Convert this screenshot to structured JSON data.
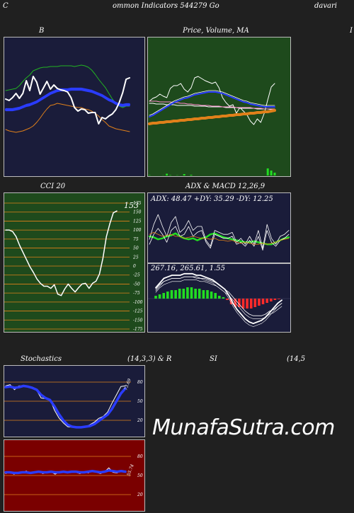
{
  "header": {
    "left": "C",
    "center": "ommon  Indicators 544279 Go",
    "right": "davari"
  },
  "brand": "MunafaSutra.com",
  "colors": {
    "page_bg": "#202020",
    "navy": "#1a1c3a",
    "green_bg": "#1e4a1c",
    "red_bg": "#7a0000",
    "white": "#ffffff",
    "blue": "#2a3cff",
    "orange": "#e0801a",
    "green_line": "#22b222",
    "bright_green": "#22dd22",
    "red": "#ff2a2a",
    "pink": "#ff88cc",
    "border": "#bbbbbb"
  },
  "chart_data": [
    {
      "type": "line",
      "title": "B",
      "series": [
        {
          "role": "upper_band",
          "color": "#22b222",
          "values": [
            128,
            127,
            126,
            125,
            121,
            115,
            110,
            106,
            100,
            98,
            96,
            95,
            95,
            94,
            94,
            94,
            93,
            93,
            93,
            93,
            94,
            93,
            92,
            93,
            95,
            99,
            105,
            112,
            118,
            124,
            132,
            140,
            146,
            150,
            152,
            150,
            150
          ]
        },
        {
          "role": "middle_band",
          "color": "#2a3cff",
          "values": [
            155,
            155,
            155,
            154,
            153,
            151,
            149,
            148,
            146,
            144,
            141,
            138,
            135,
            132,
            130,
            128,
            127,
            127,
            127,
            126,
            126,
            126,
            126,
            127,
            128,
            129,
            131,
            133,
            135,
            138,
            141,
            143,
            146,
            148,
            149,
            148,
            148
          ]
        },
        {
          "role": "lower_band",
          "color": "#e0801a",
          "values": [
            183,
            185,
            186,
            187,
            186,
            185,
            183,
            181,
            178,
            173,
            167,
            160,
            154,
            149,
            148,
            146,
            147,
            148,
            149,
            150,
            151,
            152,
            152,
            154,
            155,
            157,
            160,
            164,
            169,
            173,
            178,
            180,
            182,
            183,
            184,
            185,
            186
          ]
        },
        {
          "role": "price",
          "color": "#ffffff",
          "values": [
            140,
            142,
            138,
            132,
            139,
            132,
            114,
            128,
            108,
            116,
            133,
            124,
            115,
            126,
            120,
            125,
            127,
            128,
            130,
            138,
            152,
            157,
            154,
            155,
            160,
            159,
            159,
            175,
            166,
            168,
            164,
            161,
            155,
            145,
            131,
            112,
            110
          ]
        }
      ]
    },
    {
      "type": "line",
      "title": "Price,  Volume,  MA",
      "series": [
        {
          "role": "price",
          "color": "#ffffff",
          "values": [
            143,
            139,
            137,
            133,
            136,
            138,
            125,
            121,
            121,
            118,
            126,
            130,
            124,
            110,
            108,
            111,
            114,
            116,
            118,
            116,
            124,
            138,
            145,
            150,
            148,
            160,
            152,
            157,
            162,
            171,
            176,
            168,
            173,
            160,
            141,
            123,
            118
          ]
        },
        {
          "role": "ma_long",
          "color": "#ffffff",
          "values": [
            146,
            146,
            147,
            147,
            147,
            148,
            148,
            148,
            149,
            149,
            149,
            149,
            149,
            150,
            150,
            150,
            150,
            151,
            151,
            151,
            151,
            151,
            152,
            152,
            152,
            152,
            153,
            153,
            153,
            153,
            153,
            154,
            154,
            154,
            154,
            155,
            155
          ]
        },
        {
          "role": "ma_mid",
          "color": "#ff88cc",
          "values": [
            143,
            143,
            143,
            144,
            144,
            144,
            144,
            145,
            145,
            146,
            146,
            147,
            147,
            148,
            148,
            149,
            149,
            149,
            150,
            150,
            150,
            151,
            151,
            151,
            151,
            152,
            152,
            152,
            152,
            152,
            153,
            153,
            153,
            154,
            154,
            154,
            154
          ]
        },
        {
          "role": "ma_short",
          "color": "#2a3cff",
          "values": [
            165,
            163,
            160,
            157,
            154,
            151,
            148,
            145,
            143,
            141,
            139,
            138,
            136,
            134,
            133,
            132,
            131,
            130,
            130,
            130,
            131,
            132,
            134,
            136,
            138,
            140,
            142,
            144,
            145,
            147,
            148,
            149,
            150,
            151,
            151,
            151,
            151
          ]
        },
        {
          "role": "ma_thick",
          "color": "#e0801a",
          "values": [
            175,
            174,
            174,
            173,
            173,
            172,
            172,
            171,
            171,
            170,
            170,
            169,
            169,
            168,
            168,
            167,
            167,
            166,
            166,
            165,
            165,
            164,
            164,
            163,
            163,
            162,
            162,
            161,
            161,
            160,
            160,
            159,
            159,
            158,
            158,
            157,
            156
          ]
        }
      ],
      "volume": [
        0.5,
        0,
        0,
        0,
        0.2,
        2.5,
        0.5,
        0,
        0.3,
        0,
        2,
        0,
        1,
        0,
        0,
        0,
        0,
        0,
        0,
        0,
        0,
        0,
        0,
        0,
        0,
        0,
        0,
        0,
        0,
        0,
        0,
        0,
        0,
        0,
        10,
        7,
        4
      ]
    },
    {
      "type": "line",
      "title": "CCI 20",
      "value_label": "153",
      "ylim": [
        -175,
        175
      ],
      "y_ticks": [
        175,
        150,
        125,
        100,
        75,
        50,
        25,
        0,
        -25,
        -50,
        -75,
        -100,
        -125,
        -150,
        -175
      ],
      "y_tick_labels": [
        "175",
        "150",
        "125",
        "100",
        "75",
        "50",
        "25",
        "0",
        "-25",
        "-50",
        "-75",
        "-100",
        "-125",
        "-150",
        "-175"
      ],
      "values": [
        100,
        100,
        96,
        82,
        58,
        38,
        18,
        -2,
        -18,
        -36,
        -48,
        -56,
        -56,
        -62,
        -52,
        -78,
        -82,
        -64,
        -50,
        -62,
        -72,
        -60,
        -50,
        -48,
        -62,
        -48,
        -42,
        -22,
        22,
        82,
        118,
        148,
        153
      ]
    },
    {
      "type": "line",
      "title": "ADX  & MACD 12,26,9",
      "adx_label": "ADX: 48.47  +DY: 35.29  -DY: 12.25",
      "macd_label": "267.16,  265.61,  1.55",
      "adx_series": [
        {
          "role": "adx",
          "color": "#22dd22",
          "values": [
            20,
            19,
            17,
            18,
            20,
            21,
            23,
            20,
            18,
            17,
            18,
            16,
            18,
            19,
            22,
            23,
            21,
            19,
            18,
            17,
            16,
            15,
            14,
            14,
            15,
            14,
            13,
            12,
            12,
            14,
            16,
            18,
            19
          ]
        },
        {
          "role": "plus_di",
          "color": "#ffffff",
          "values": [
            17,
            32,
            42,
            30,
            20,
            34,
            40,
            24,
            28,
            36,
            26,
            30,
            30,
            16,
            10,
            26,
            24,
            22,
            22,
            24,
            14,
            18,
            12,
            20,
            12,
            26,
            8,
            32,
            18,
            12,
            20,
            22,
            26
          ]
        },
        {
          "role": "minus_di",
          "color": "#ffffff",
          "values": [
            12,
            22,
            28,
            22,
            14,
            26,
            30,
            20,
            22,
            30,
            20,
            24,
            26,
            14,
            8,
            22,
            20,
            18,
            18,
            20,
            12,
            14,
            10,
            16,
            10,
            20,
            6,
            26,
            14,
            10,
            16,
            18,
            22
          ]
        },
        {
          "role": "dx",
          "color": "#e0801a",
          "values": [
            22,
            24,
            22,
            20,
            21,
            22,
            20,
            20,
            18,
            19,
            20,
            19,
            18,
            18,
            17,
            18,
            16,
            16,
            15,
            16,
            14,
            13,
            14,
            13,
            12,
            12,
            13,
            12,
            13,
            14,
            16,
            17,
            18
          ]
        }
      ],
      "macd_series": [
        {
          "role": "macd",
          "color": "#ffffff",
          "values": [
            7,
            10,
            13,
            14,
            15,
            15,
            15,
            16,
            16,
            16,
            15,
            15,
            14,
            13,
            12,
            10,
            8,
            6,
            2,
            -3,
            -7,
            -10,
            -13,
            -15,
            -16,
            -15,
            -14,
            -12,
            -9,
            -6,
            -3,
            -1
          ]
        },
        {
          "role": "signal",
          "color": "#ffffff",
          "values": [
            6,
            9,
            11,
            12,
            13,
            13,
            13,
            14,
            14,
            14,
            14,
            13,
            13,
            12,
            11,
            10,
            8,
            6,
            4,
            1,
            -2,
            -5,
            -8,
            -10,
            -11,
            -11,
            -11,
            -10,
            -8,
            -7,
            -5,
            -3
          ]
        }
      ],
      "histogram": [
        1,
        1.5,
        2,
        2.5,
        3,
        3,
        3.5,
        3.5,
        4,
        4,
        3.5,
        3.5,
        3,
        3,
        2.5,
        2,
        1,
        0.5,
        -0.5,
        -2,
        -3,
        -3,
        -3.5,
        -3.5,
        -3.5,
        -3,
        -2.5,
        -2,
        -1.5,
        -1,
        -0.5,
        -0.2
      ]
    },
    {
      "type": "line",
      "title": "Stochastics",
      "params": "(14,3,3) & R",
      "value_label": "73.69",
      "y_ticks": [
        80,
        50,
        20
      ],
      "y_tick_labels": [
        "80",
        "50",
        "20"
      ],
      "series": [
        {
          "role": "k",
          "color": "#ffffff",
          "values": [
            74,
            76,
            68,
            74,
            74,
            73,
            71,
            67,
            55,
            54,
            53,
            36,
            24,
            16,
            10,
            9,
            8,
            9,
            10,
            13,
            17,
            23,
            26,
            33,
            47,
            60,
            73,
            74
          ]
        },
        {
          "role": "d",
          "color": "#2a3cff",
          "values": [
            72,
            73,
            71,
            72,
            74,
            73,
            71,
            68,
            60,
            55,
            52,
            42,
            30,
            20,
            13,
            10,
            9,
            9,
            10,
            11,
            14,
            19,
            24,
            29,
            38,
            50,
            62,
            70
          ]
        }
      ]
    },
    {
      "type": "line",
      "title": "SI",
      "params": "(14,5",
      "value_label": "55.74",
      "y_ticks": [
        80,
        50,
        20
      ],
      "y_tick_labels": [
        "80",
        "50",
        "20"
      ],
      "series": [
        {
          "role": "rsi",
          "color": "#ffffff",
          "values": [
            53,
            56,
            52,
            55,
            54,
            57,
            53,
            55,
            57,
            53,
            55,
            56,
            52,
            56,
            55,
            54,
            57,
            55,
            53,
            56,
            54,
            58,
            55,
            53,
            56,
            62,
            55,
            54,
            58,
            56
          ]
        },
        {
          "role": "rsi_avg",
          "color": "#2a3cff",
          "values": [
            55,
            55,
            54,
            54,
            55,
            55,
            54,
            55,
            56,
            55,
            55,
            56,
            55,
            55,
            56,
            55,
            56,
            56,
            55,
            55,
            56,
            57,
            56,
            55,
            56,
            58,
            57,
            56,
            57,
            56
          ]
        }
      ]
    }
  ],
  "partial_label": "I"
}
